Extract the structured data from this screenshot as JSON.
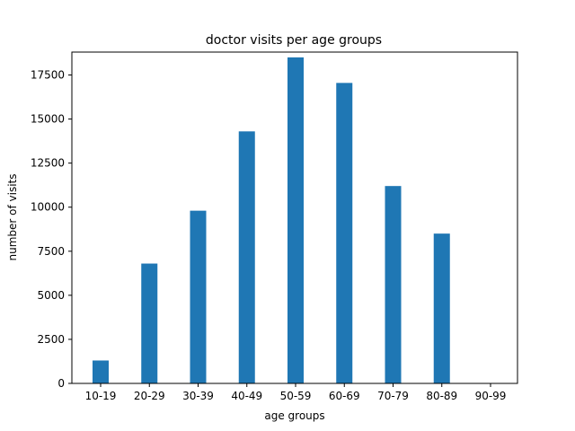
{
  "chart_data": {
    "type": "bar",
    "title": "doctor visits per age groups",
    "xlabel": "age groups",
    "ylabel": "number of visits",
    "categories": [
      "10-19",
      "20-29",
      "30-39",
      "40-49",
      "50-59",
      "60-69",
      "70-79",
      "80-89",
      "90-99"
    ],
    "values": [
      1300,
      6800,
      9800,
      14300,
      18500,
      17050,
      11200,
      8500,
      0
    ],
    "ylim": [
      0,
      18800
    ],
    "yticks": [
      0,
      2500,
      5000,
      7500,
      10000,
      12500,
      15000,
      17500
    ],
    "ytick_labels": [
      "0",
      "2500",
      "5000",
      "7500",
      "10000",
      "12500",
      "15000",
      "17500"
    ],
    "bar_color": "#1f77b4",
    "grid": false,
    "legend": "none"
  }
}
